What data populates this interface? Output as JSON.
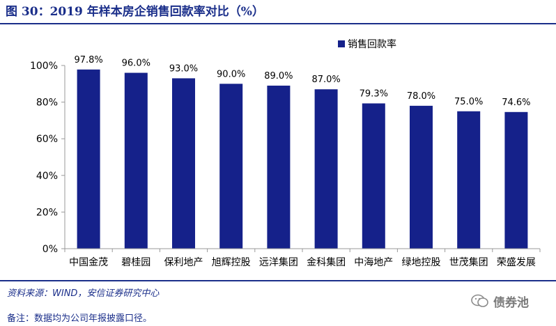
{
  "figure": {
    "title": "图 30：2019 年样本房企销售回款率对比（%）",
    "source": "资料来源：WIND，安信证券研究中心",
    "note": "备注：数据均为公司年报披露口径。",
    "watermark": "债券池"
  },
  "colors": {
    "bar": "#15218a",
    "title": "#1a2e8a"
  },
  "chart_data": {
    "type": "bar",
    "categories": [
      "中国金茂",
      "碧桂园",
      "保利地产",
      "旭辉控股",
      "远洋集团",
      "金科集团",
      "中海地产",
      "绿地控股",
      "世茂集团",
      "荣盛发展"
    ],
    "series": [
      {
        "name": "销售回款率",
        "values": [
          97.8,
          96.0,
          93.0,
          90.0,
          89.0,
          87.0,
          79.3,
          78.0,
          75.0,
          74.6
        ]
      }
    ],
    "data_labels": [
      "97.8%",
      "96.0%",
      "93.0%",
      "90.0%",
      "89.0%",
      "87.0%",
      "79.3%",
      "78.0%",
      "75.0%",
      "74.6%"
    ],
    "y_ticks": [
      {
        "value": 0,
        "label": "0%"
      },
      {
        "value": 20,
        "label": "20%"
      },
      {
        "value": 40,
        "label": "40%"
      },
      {
        "value": 60,
        "label": "60%"
      },
      {
        "value": 80,
        "label": "80%"
      },
      {
        "value": 100,
        "label": "100%"
      }
    ],
    "ylim": [
      0,
      100
    ],
    "grid": false,
    "legend_position": "top-right"
  }
}
